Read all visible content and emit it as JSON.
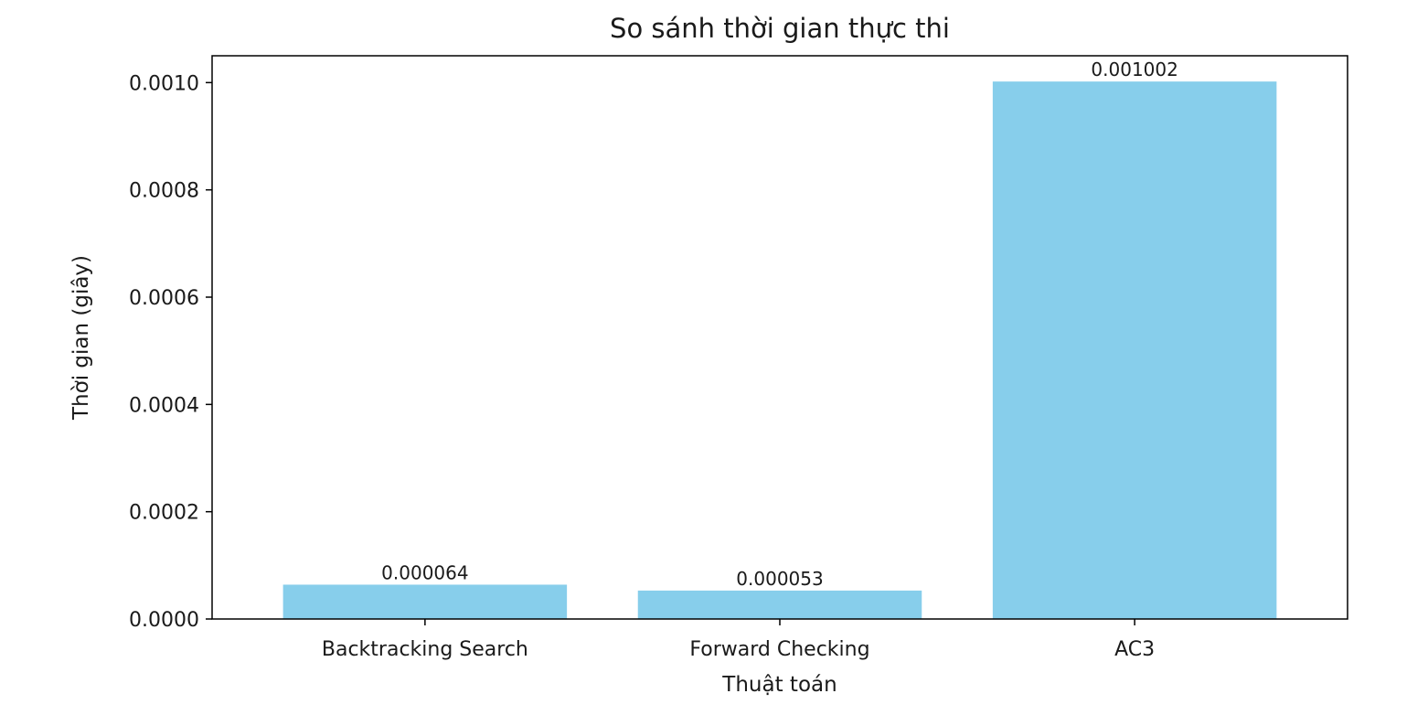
{
  "chart_data": {
    "type": "bar",
    "title": "So sánh thời gian thực thi",
    "xlabel": "Thuật toán",
    "ylabel": "Thời gian (giây)",
    "categories": [
      "Backtracking Search",
      "Forward Checking",
      "AC3"
    ],
    "values": [
      6.4e-05,
      5.3e-05,
      0.001002
    ],
    "value_labels": [
      "0.000064",
      "0.000053",
      "0.001002"
    ],
    "ylim": [
      0,
      0.00105
    ],
    "yticks": [
      0,
      0.0002,
      0.0004,
      0.0006,
      0.0008,
      0.001
    ],
    "ytick_labels": [
      "0.0000",
      "0.0002",
      "0.0004",
      "0.0006",
      "0.0008",
      "0.0010"
    ],
    "bar_color": "#87ceeb",
    "grid": false,
    "legend": false
  }
}
